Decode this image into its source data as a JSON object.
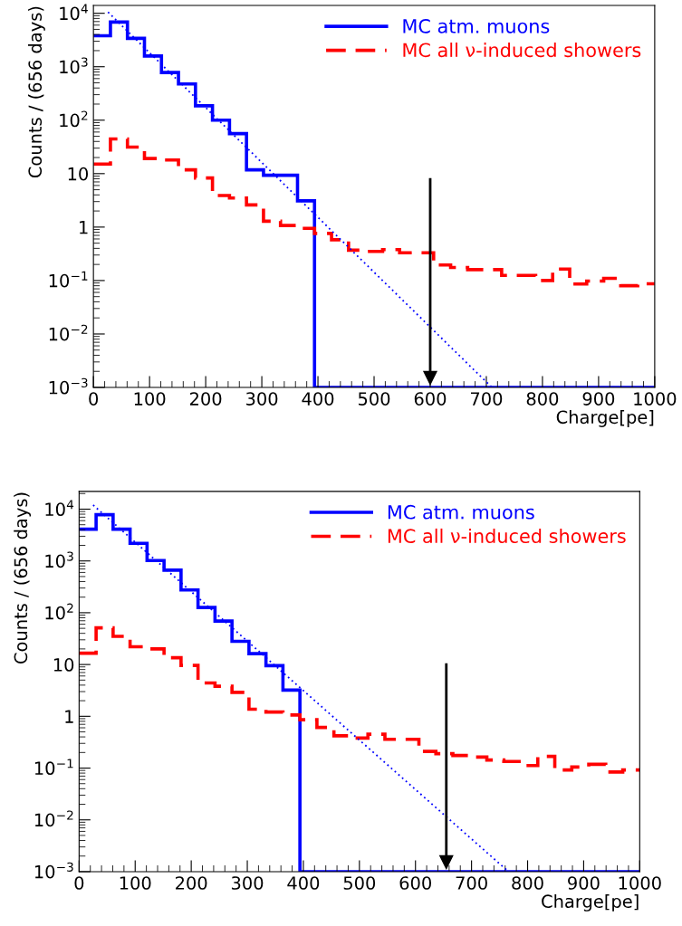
{
  "chart_data": [
    {
      "type": "histogram",
      "xlabel": "Charge[pe]",
      "ylabel": "Counts / (656 days)",
      "log": "y",
      "legend": "top right",
      "grid": false,
      "bins": [
        0,
        30.3,
        60.6,
        90.9,
        121.2,
        151.5,
        181.8,
        212.1,
        242.4,
        272.7,
        303.0,
        333.3,
        363.6,
        393.9,
        424.2,
        454.5,
        484.8,
        515.2,
        545.5,
        575.8,
        606.1,
        636.4,
        666.7,
        697.0,
        727.3,
        757.6,
        787.9,
        818.2,
        848.5,
        878.8,
        909.1,
        939.4,
        969.7,
        1000
      ],
      "xlim": [
        0,
        1000
      ],
      "xticks": [
        0,
        100,
        200,
        300,
        400,
        500,
        600,
        700,
        800,
        900,
        1000
      ],
      "ylim": [
        0.001,
        14000
      ],
      "yticks": [
        {
          "value": 0.001,
          "label": "10$^{−3}$"
        },
        {
          "value": 0.01,
          "label": "10$^{−2}$"
        },
        {
          "value": 0.1,
          "label": "10$^{−1}$"
        },
        1,
        10,
        {
          "value": 100,
          "label": "10$^{2}$"
        },
        {
          "value": 1000,
          "label": "10$^{3}$"
        },
        {
          "value": 10000,
          "label": "10$^{4}$"
        }
      ],
      "series": [
        {
          "name": "MC atm. muons",
          "color": "#0000ff",
          "line_style": "solid",
          "values": [
            3800,
            6860,
            3390,
            1590,
            780,
            475,
            186,
            100,
            56,
            11.8,
            9.3,
            9.3,
            3.1,
            0.001,
            0.001,
            0.001,
            0.001,
            0.001,
            0.001,
            0.001,
            0.001,
            0.001,
            0.001,
            0.001,
            0.001,
            0.001,
            0.001,
            0.001,
            0.001,
            0.001,
            0.001,
            0.001,
            0.001
          ]
        },
        {
          "name": "MC all ν-induced showers",
          "color": "#ff0000",
          "line_style": "dashed",
          "values": [
            15.1,
            44.5,
            31.4,
            19.2,
            18,
            11.8,
            8.3,
            3.9,
            3.5,
            2.6,
            1.29,
            1.07,
            0.95,
            0.76,
            0.58,
            0.37,
            0.35,
            0.38,
            0.33,
            0.33,
            0.195,
            0.175,
            0.16,
            0.16,
            0.125,
            0.125,
            0.1,
            0.164,
            0.086,
            0.098,
            0.11,
            0.08,
            0.087
          ]
        },
        {
          "type": "line",
          "color": "#0000ff",
          "line_style": "dotted",
          "x": [
            26,
            710
          ],
          "values": [
            10500,
            0.001
          ]
        }
      ],
      "ref_lines": [
        {
          "axis": "x",
          "value": 600,
          "color": "#000000"
        }
      ]
    },
    {
      "type": "histogram",
      "xlabel": "Charge[pe]",
      "ylabel": "Counts / (656 days)",
      "log": "y",
      "legend": "top right",
      "grid": false,
      "bins": [
        0,
        30.3,
        60.6,
        90.9,
        121.2,
        151.5,
        181.8,
        212.1,
        242.4,
        272.7,
        303.0,
        333.3,
        363.6,
        393.9,
        424.2,
        454.5,
        484.8,
        515.2,
        545.5,
        575.8,
        606.1,
        636.4,
        666.7,
        697.0,
        727.3,
        757.6,
        787.9,
        818.2,
        848.5,
        878.8,
        909.1,
        939.4,
        969.7,
        1000
      ],
      "xlim": [
        0,
        1000
      ],
      "xticks": [
        0,
        100,
        200,
        300,
        400,
        500,
        600,
        700,
        800,
        900,
        1000
      ],
      "ylim": [
        0.001,
        22000
      ],
      "yticks": [
        {
          "value": 0.001,
          "label": "10$^{−3}$"
        },
        {
          "value": 0.01,
          "label": "10$^{−2}$"
        },
        {
          "value": 0.1,
          "label": "10$^{−1}$"
        },
        1,
        10,
        {
          "value": 100,
          "label": "10$^{2}$"
        },
        {
          "value": 1000,
          "label": "10$^{3}$"
        },
        {
          "value": 10000,
          "label": "10$^{4}$"
        }
      ],
      "series": [
        {
          "name": "MC atm. muons",
          "color": "#0000ff",
          "line_style": "solid",
          "values": [
            4100,
            7800,
            4100,
            2190,
            1020,
            665,
            276,
            126,
            69,
            28,
            16.2,
            9.5,
            3.2,
            0.001,
            0.001,
            0.001,
            0.001,
            0.001,
            0.001,
            0.001,
            0.001,
            0.001,
            0.001,
            0.001,
            0.001,
            0.001,
            0.001,
            0.001,
            0.001,
            0.001,
            0.001,
            0.001,
            0.001
          ]
        },
        {
          "name": "MC all ν-induced showers",
          "color": "#ff0000",
          "line_style": "dashed",
          "values": [
            16.5,
            51,
            35,
            22,
            20,
            13.5,
            9.6,
            4.4,
            3.8,
            2.9,
            1.37,
            1.21,
            1.06,
            0.86,
            0.61,
            0.42,
            0.38,
            0.45,
            0.36,
            0.36,
            0.21,
            0.19,
            0.175,
            0.163,
            0.143,
            0.134,
            0.112,
            0.168,
            0.092,
            0.105,
            0.118,
            0.084,
            0.092
          ]
        },
        {
          "type": "line",
          "color": "#0000ff",
          "line_style": "dotted",
          "x": [
            25,
            766
          ],
          "values": [
            12000,
            0.001
          ]
        }
      ],
      "ref_lines": [
        {
          "axis": "x",
          "value": 655,
          "color": "#000000"
        }
      ]
    }
  ]
}
